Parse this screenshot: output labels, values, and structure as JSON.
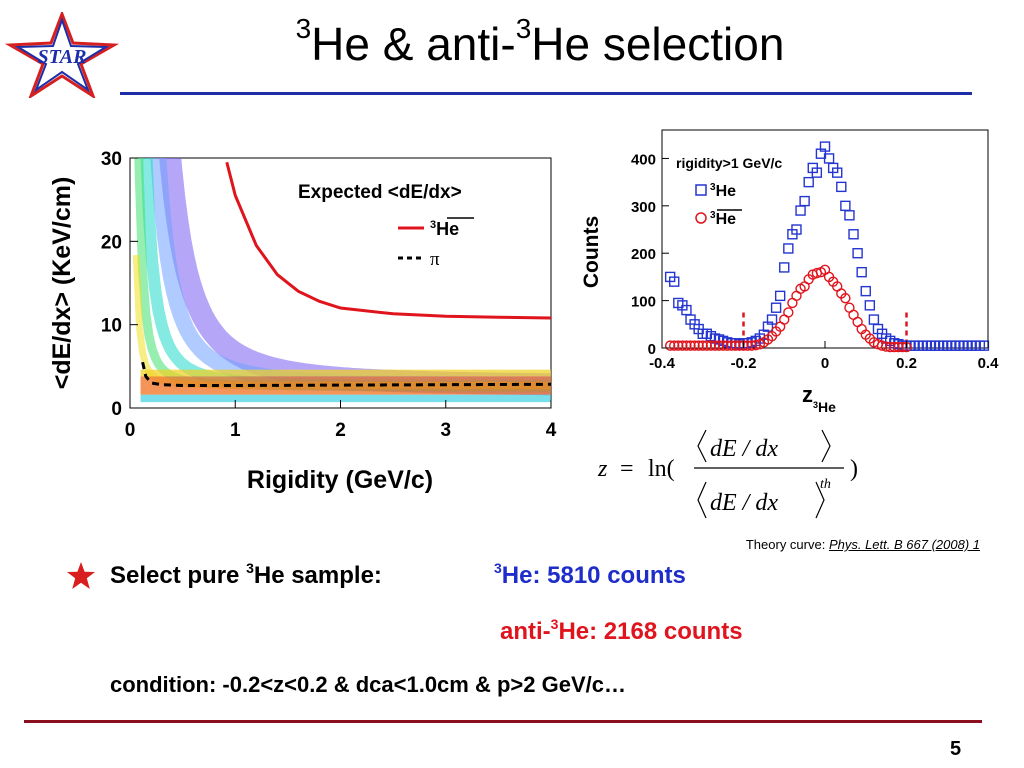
{
  "logo": {
    "text": "STAR"
  },
  "title": {
    "sup1": "3",
    "part1": "He & anti-",
    "sup2": "3",
    "part2": "He selection"
  },
  "chart_data": [
    {
      "type": "heatmap",
      "xlabel": "Rigidity (GeV/c)",
      "ylabel": "<dE/dx> (KeV/cm)",
      "xlim": [
        0,
        4
      ],
      "ylim": [
        0,
        30
      ],
      "xticks": [
        "0",
        "1",
        "2",
        "3",
        "4"
      ],
      "yticks": [
        "0",
        "10",
        "20",
        "30"
      ],
      "legend_title": "Expected <dE/dx>",
      "legend_position": "top-right",
      "series": [
        {
          "name": "3He-bar",
          "label_sup": "3",
          "label": "He",
          "color": "#e0141c",
          "style": "solid",
          "x": [
            0.92,
            1.0,
            1.2,
            1.4,
            1.6,
            1.8,
            2.0,
            2.5,
            3.0,
            3.5,
            4.0
          ],
          "y": [
            29.5,
            25.5,
            19.5,
            16.0,
            14.0,
            12.8,
            12.0,
            11.3,
            11.0,
            10.9,
            10.8
          ]
        },
        {
          "name": "pi",
          "label": "π",
          "color": "#000000",
          "style": "dashed",
          "x": [
            0.12,
            0.15,
            0.2,
            0.3,
            0.5,
            1.0,
            2.0,
            3.0,
            4.0
          ],
          "y": [
            5.5,
            3.8,
            3.0,
            2.8,
            2.7,
            2.7,
            2.75,
            2.8,
            2.85
          ]
        }
      ]
    },
    {
      "type": "scatter",
      "xlabel": "z",
      "xlabel_sub_sup": "3",
      "xlabel_sub": "He",
      "ylabel": "Counts",
      "xlim": [
        -0.4,
        0.4
      ],
      "ylim": [
        0,
        460
      ],
      "xticks": [
        "-0.4",
        "-0.2",
        "0",
        "0.2",
        "0.4"
      ],
      "yticks": [
        "0",
        "100",
        "200",
        "300",
        "400"
      ],
      "annotation": "rigidity>1 GeV/c",
      "legend_position": "top-left",
      "cut_lines": [
        -0.2,
        0.2
      ],
      "series": [
        {
          "name": "3He",
          "label_sup": "3",
          "label": "He",
          "marker": "square",
          "color": "#2435d0",
          "x": [
            -0.38,
            -0.37,
            -0.36,
            -0.35,
            -0.34,
            -0.33,
            -0.32,
            -0.31,
            -0.3,
            -0.29,
            -0.28,
            -0.27,
            -0.26,
            -0.25,
            -0.24,
            -0.23,
            -0.22,
            -0.21,
            -0.2,
            -0.19,
            -0.18,
            -0.17,
            -0.16,
            -0.15,
            -0.14,
            -0.13,
            -0.12,
            -0.11,
            -0.1,
            -0.09,
            -0.08,
            -0.07,
            -0.06,
            -0.05,
            -0.04,
            -0.03,
            -0.02,
            -0.01,
            0.0,
            0.01,
            0.02,
            0.03,
            0.04,
            0.05,
            0.06,
            0.07,
            0.08,
            0.09,
            0.1,
            0.11,
            0.12,
            0.13,
            0.14,
            0.15,
            0.16,
            0.17,
            0.18,
            0.19,
            0.2,
            0.21,
            0.22,
            0.23,
            0.24,
            0.25,
            0.26,
            0.27,
            0.28,
            0.29,
            0.3,
            0.31,
            0.32,
            0.33,
            0.34,
            0.35,
            0.36,
            0.37,
            0.38,
            0.39
          ],
          "y": [
            150,
            140,
            95,
            90,
            80,
            60,
            50,
            40,
            30,
            30,
            25,
            20,
            18,
            15,
            12,
            10,
            10,
            8,
            10,
            10,
            12,
            15,
            20,
            28,
            45,
            60,
            85,
            110,
            170,
            210,
            240,
            250,
            290,
            310,
            350,
            380,
            370,
            410,
            425,
            400,
            380,
            370,
            340,
            300,
            280,
            240,
            200,
            160,
            120,
            90,
            60,
            40,
            30,
            20,
            15,
            10,
            8,
            5,
            5,
            5,
            5,
            5,
            5,
            5,
            5,
            5,
            5,
            5,
            5,
            5,
            5,
            5,
            5,
            5,
            5,
            5,
            5,
            5
          ]
        },
        {
          "name": "3He-bar",
          "label_sup": "3",
          "label": "He",
          "marker": "circle",
          "color": "#e0141c",
          "x": [
            -0.38,
            -0.37,
            -0.36,
            -0.35,
            -0.34,
            -0.33,
            -0.32,
            -0.31,
            -0.3,
            -0.29,
            -0.28,
            -0.27,
            -0.26,
            -0.25,
            -0.24,
            -0.23,
            -0.22,
            -0.21,
            -0.2,
            -0.19,
            -0.18,
            -0.17,
            -0.16,
            -0.15,
            -0.14,
            -0.13,
            -0.12,
            -0.11,
            -0.1,
            -0.09,
            -0.08,
            -0.07,
            -0.06,
            -0.05,
            -0.04,
            -0.03,
            -0.02,
            -0.01,
            0.0,
            0.01,
            0.02,
            0.03,
            0.04,
            0.05,
            0.06,
            0.07,
            0.08,
            0.09,
            0.1,
            0.11,
            0.12,
            0.13,
            0.14,
            0.15,
            0.16,
            0.17,
            0.18,
            0.19,
            0.2
          ],
          "y": [
            5,
            5,
            5,
            5,
            5,
            5,
            5,
            5,
            5,
            5,
            5,
            5,
            5,
            5,
            5,
            5,
            5,
            5,
            5,
            5,
            5,
            6,
            8,
            12,
            18,
            25,
            35,
            45,
            60,
            75,
            95,
            110,
            125,
            130,
            145,
            155,
            158,
            160,
            165,
            150,
            140,
            130,
            115,
            105,
            85,
            70,
            55,
            40,
            28,
            20,
            12,
            8,
            5,
            3,
            2,
            2,
            2,
            2,
            2
          ]
        }
      ]
    }
  ],
  "formula": {
    "lhs": "z",
    "eq": "=",
    "fn": "ln(",
    "num": "dE / dx",
    "den": "dE / dx",
    "den_sub": "th",
    "close": ")"
  },
  "theory": {
    "prefix": "Theory curve: ",
    "ref": "Phys. Lett. B 667 (2008) 1"
  },
  "bullets": {
    "line1_a": "Select pure ",
    "line1_sup": "3",
    "line1_b": "He sample:",
    "count1_sup": "3",
    "count1": "He: 5810 counts",
    "count2_a": "anti-",
    "count2_sup": "3",
    "count2_b": "He: 2168 counts",
    "condition": "condition: -0.2<z<0.2  &  dca<1.0cm  &  p>2 GeV/c…"
  },
  "colors": {
    "title_rule": "#1d2ea8",
    "bottom_rule": "#8a1020",
    "count_blue": "#1e2dc9",
    "count_red": "#e0141c",
    "star": "#d81e1e"
  },
  "page_number": "5"
}
